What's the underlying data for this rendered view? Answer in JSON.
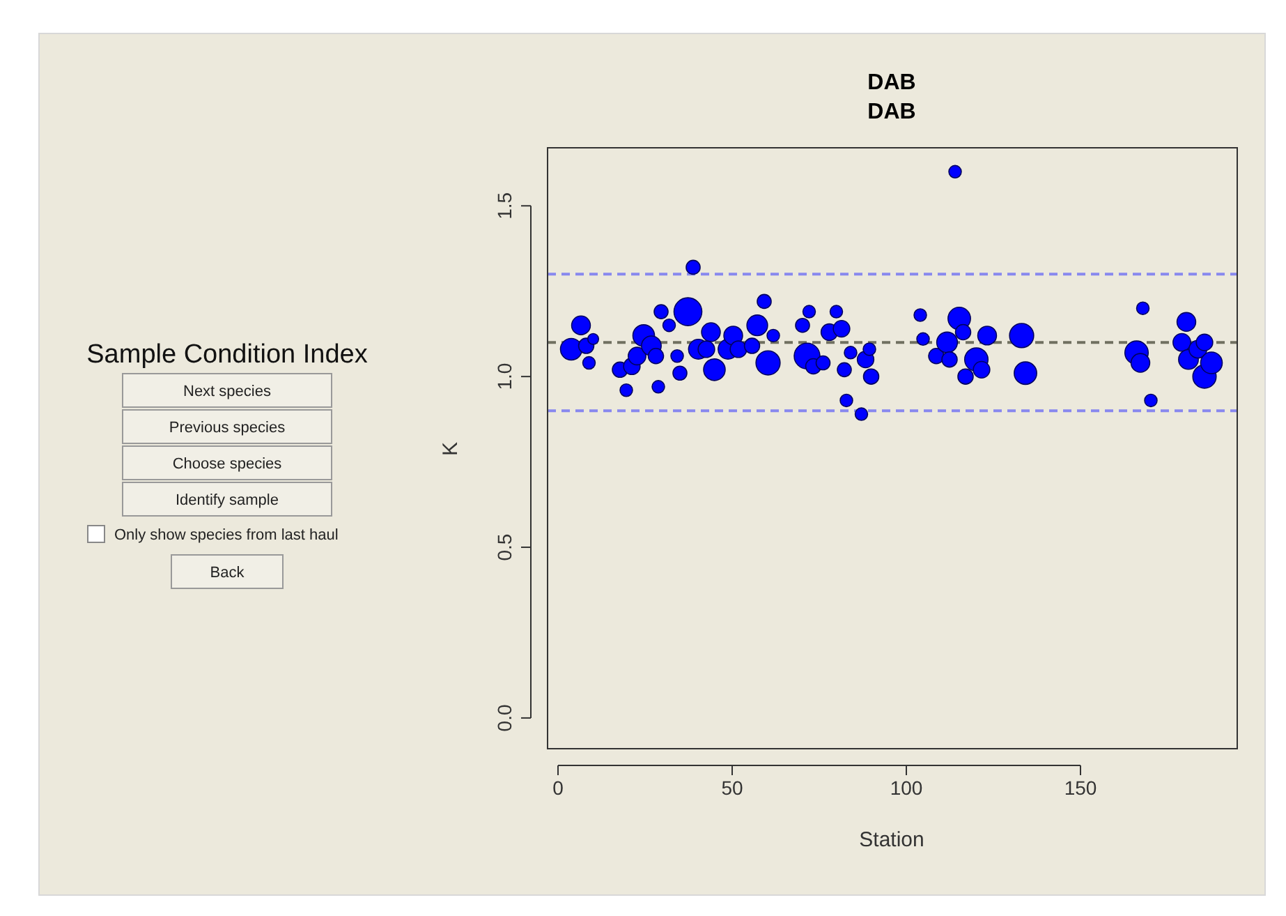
{
  "chart_data": [
    {
      "type": "other",
      "title": "Sample Condition Index",
      "annotations": [
        "Next species",
        "Previous species",
        "Choose species",
        "Identify sample",
        "Only show species from last haul",
        "Back"
      ]
    },
    {
      "type": "bubble",
      "title": "DAB",
      "subtitle": "DAB",
      "xlabel": "Station",
      "ylabel": "K",
      "color": "#0000ff",
      "xlim": [
        -3,
        195
      ],
      "ylim": [
        -0.09,
        1.67
      ],
      "xticks": [
        0,
        50,
        100,
        150
      ],
      "yticks": [
        {
          "value": 0,
          "label": "0.0"
        },
        {
          "value": 0.5,
          "label": "0.5"
        },
        {
          "value": 1,
          "label": "1.0"
        },
        {
          "value": 1.5,
          "label": "1.5"
        }
      ],
      "x": [
        3.8,
        6.6,
        8.1,
        8.9,
        10.1,
        17.8,
        19.6,
        21.2,
        22.7,
        24.6,
        26.8,
        28.1,
        28.8,
        29.6,
        31.9,
        34.2,
        35.0,
        37.3,
        38.8,
        40.3,
        43.9,
        42.6,
        44.9,
        48.8,
        50.3,
        51.8,
        55.7,
        57.2,
        59.2,
        60.3,
        61.8,
        70.2,
        71.5,
        72.1,
        73.3,
        76.1,
        77.9,
        79.9,
        81.4,
        82.2,
        82.8,
        84.0,
        87.1,
        88.3,
        89.4,
        89.9,
        104.0,
        104.8,
        108.6,
        111.7,
        112.4,
        114.0,
        115.2,
        116.3,
        117.0,
        120.1,
        121.6,
        123.2,
        133.1,
        134.2,
        166.1,
        167.2,
        167.9,
        170.2,
        180.4,
        179.1,
        181.0,
        183.7,
        185.6,
        185.6,
        187.6
      ],
      "values": [
        1.08,
        1.15,
        1.09,
        1.04,
        1.11,
        1.02,
        0.96,
        1.03,
        1.06,
        1.12,
        1.09,
        1.06,
        0.97,
        1.19,
        1.15,
        1.06,
        1.01,
        1.19,
        1.32,
        1.08,
        1.13,
        1.08,
        1.02,
        1.08,
        1.12,
        1.08,
        1.09,
        1.15,
        1.22,
        1.04,
        1.12,
        1.15,
        1.06,
        1.19,
        1.03,
        1.04,
        1.13,
        1.19,
        1.14,
        1.02,
        0.93,
        1.07,
        0.89,
        1.05,
        1.08,
        1.0,
        1.18,
        1.11,
        1.06,
        1.1,
        1.05,
        1.6,
        1.17,
        1.13,
        1.0,
        1.05,
        1.02,
        1.12,
        1.12,
        1.01,
        1.07,
        1.04,
        1.2,
        0.93,
        1.16,
        1.1,
        1.05,
        1.08,
        1.1,
        1.0,
        1.04
      ],
      "sizes": [
        0.6,
        0.45,
        0.3,
        0.2,
        0.15,
        0.3,
        0.2,
        0.35,
        0.4,
        0.6,
        0.5,
        0.3,
        0.2,
        0.25,
        0.2,
        0.2,
        0.25,
        1,
        0.25,
        0.5,
        0.45,
        0.35,
        0.6,
        0.5,
        0.45,
        0.35,
        0.3,
        0.55,
        0.25,
        0.75,
        0.2,
        0.25,
        0.85,
        0.2,
        0.3,
        0.25,
        0.35,
        0.2,
        0.35,
        0.25,
        0.2,
        0.2,
        0.2,
        0.35,
        0.2,
        0.3,
        0.2,
        0.2,
        0.3,
        0.55,
        0.3,
        0.2,
        0.65,
        0.3,
        0.3,
        0.7,
        0.35,
        0.45,
        0.75,
        0.65,
        0.7,
        0.45,
        0.2,
        0.2,
        0.45,
        0.4,
        0.5,
        0.4,
        0.35,
        0.7,
        0.6
      ],
      "ref_lines": [
        {
          "axis": "y",
          "value": 1.1,
          "color": "#707060",
          "line_style": "dashed"
        },
        {
          "axis": "y",
          "value": 1.3,
          "color": "#8888ee",
          "line_style": "dashed"
        },
        {
          "axis": "y",
          "value": 0.9,
          "color": "#8888ee",
          "line_style": "dashed"
        }
      ]
    }
  ]
}
